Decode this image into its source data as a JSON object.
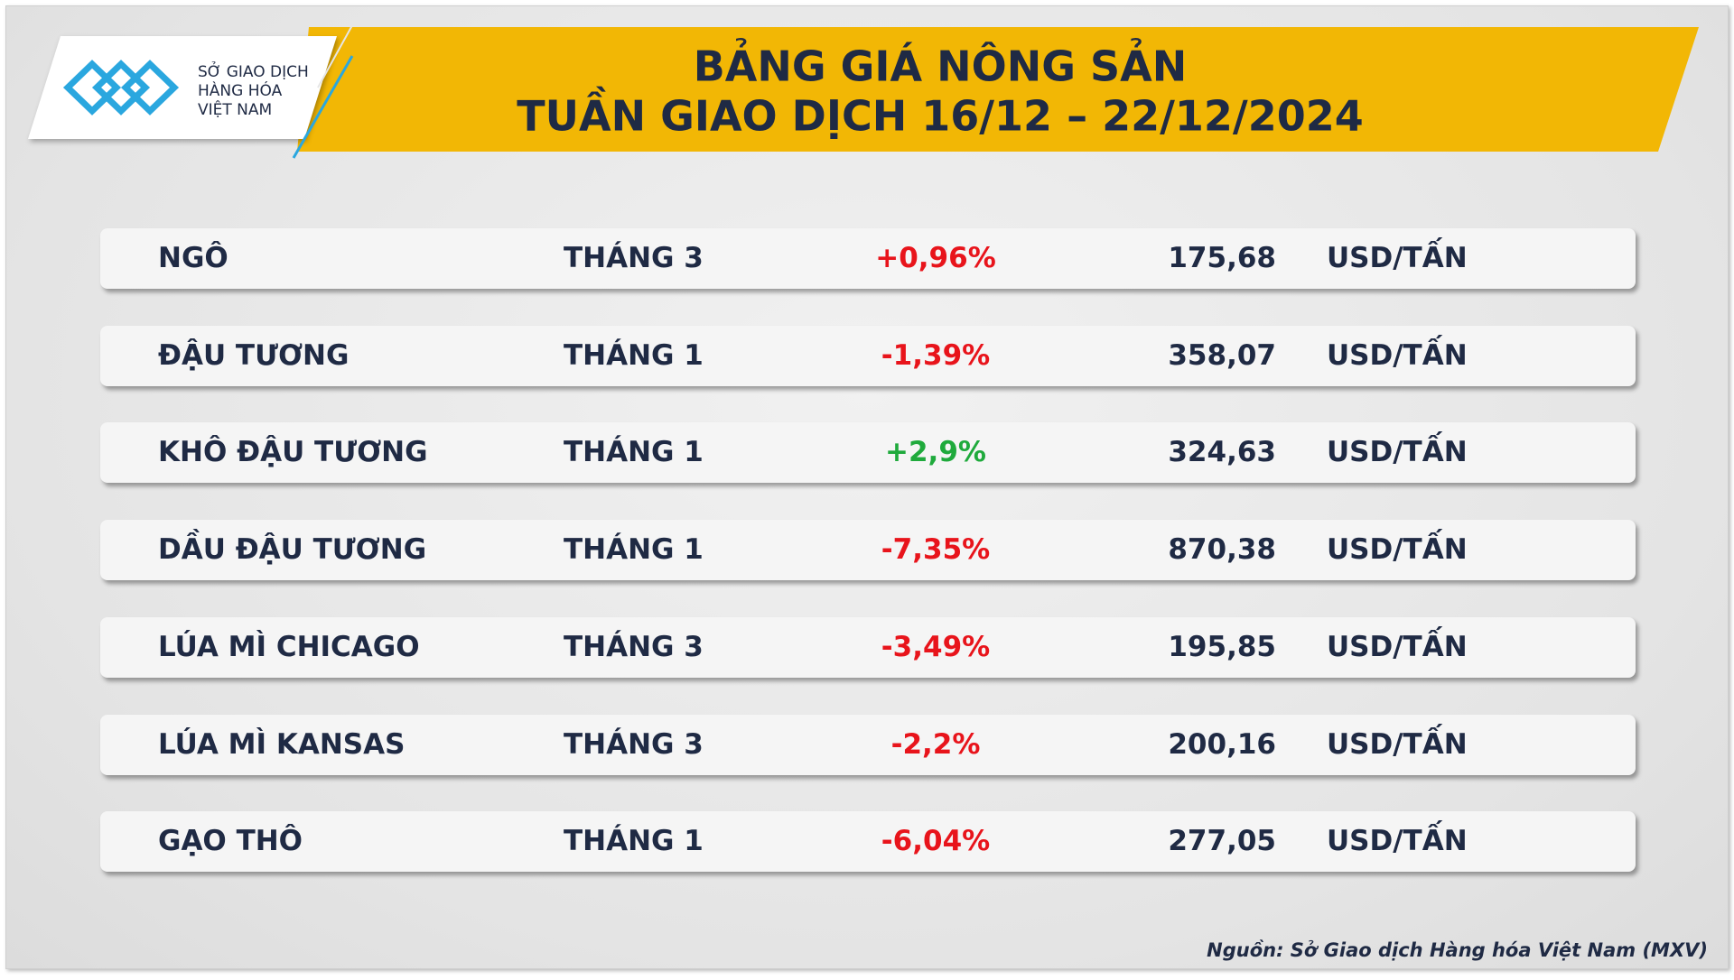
{
  "header": {
    "logo_lines": [
      "SỞ GIAO DỊCH",
      "HÀNG HÓA",
      "VIỆT NAM"
    ],
    "title_lines": [
      "BẢNG GIÁ NÔNG SẢN",
      "TUẦN GIAO DỊCH 16/12 – 22/12/2024"
    ]
  },
  "table": {
    "rows": [
      {
        "name": "NGÔ",
        "month": "THÁNG 3",
        "change": "+0,96%",
        "color": "#e8141b",
        "price": "175,68",
        "unit": "USD/TẤN"
      },
      {
        "name": "ĐẬU TƯƠNG",
        "month": "THÁNG 1",
        "change": "-1,39%",
        "color": "#e8141b",
        "price": "358,07",
        "unit": "USD/TẤN"
      },
      {
        "name": "KHÔ ĐẬU TƯƠNG",
        "month": "THÁNG 1",
        "change": "+2,9%",
        "color": "#1faa3c",
        "price": "324,63",
        "unit": "USD/TẤN"
      },
      {
        "name": "DẦU ĐẬU TƯƠNG",
        "month": "THÁNG 1",
        "change": "-7,35%",
        "color": "#e8141b",
        "price": "870,38",
        "unit": "USD/TẤN"
      },
      {
        "name": "LÚA MÌ CHICAGO",
        "month": "THÁNG 3",
        "change": "-3,49%",
        "color": "#e8141b",
        "price": "195,85",
        "unit": "USD/TẤN"
      },
      {
        "name": "LÚA MÌ KANSAS",
        "month": "THÁNG 3",
        "change": "-2,2%",
        "color": "#e8141b",
        "price": "200,16",
        "unit": "USD/TẤN"
      },
      {
        "name": "GẠO THÔ",
        "month": "THÁNG 1",
        "change": "-6,04%",
        "color": "#e8141b",
        "price": "277,05",
        "unit": "USD/TẤN"
      }
    ]
  },
  "source": "Nguồn: Sở Giao dịch Hàng hóa Việt Nam (MXV)"
}
